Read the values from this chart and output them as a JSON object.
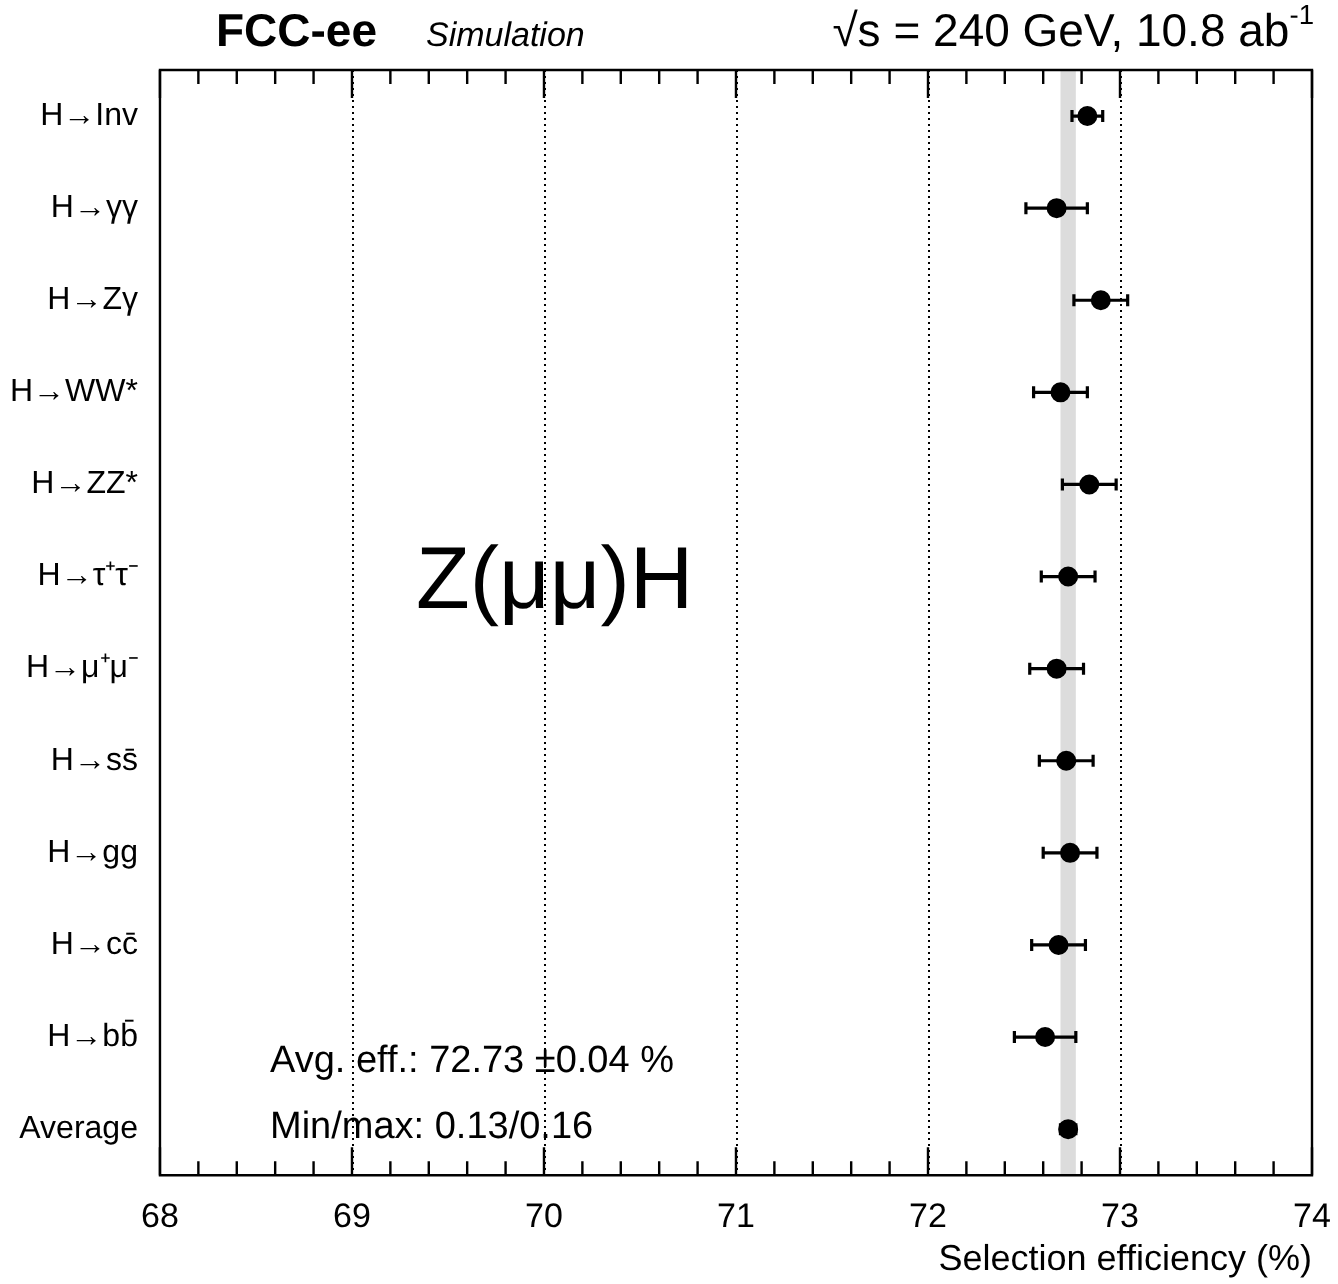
{
  "chart_data": {
    "type": "scatter",
    "title": "FCC-ee",
    "subtitle": "Simulation",
    "categories": [
      "H→Inv",
      "H→γγ",
      "H→Zγ",
      "H→WW*",
      "H→ZZ*",
      "H→τ⁺τ⁻",
      "H→μ⁺μ⁻",
      "H→ss̄",
      "H→gg",
      "H→cc̄",
      "H→bb̄",
      "Average"
    ],
    "values": [
      72.83,
      72.67,
      72.9,
      72.69,
      72.84,
      72.73,
      72.67,
      72.72,
      72.74,
      72.68,
      72.61,
      72.73
    ],
    "errors": [
      0.08,
      0.16,
      0.14,
      0.14,
      0.14,
      0.14,
      0.14,
      0.14,
      0.14,
      0.14,
      0.16,
      0.04
    ],
    "color": "#000000",
    "marker": "circle",
    "orientation": "horizontal",
    "xlabel": "Selection efficiency (%)",
    "xlim": [
      68,
      74
    ],
    "xticks": [
      68,
      {
        "value": 68.2,
        "label": null
      },
      {
        "value": 68.4,
        "label": null
      },
      {
        "value": 68.6,
        "label": null
      },
      {
        "value": 68.8,
        "label": null
      },
      69,
      {
        "value": 69.2,
        "label": null
      },
      {
        "value": 69.4,
        "label": null
      },
      {
        "value": 69.6,
        "label": null
      },
      {
        "value": 69.8,
        "label": null
      },
      70,
      {
        "value": 70.2,
        "label": null
      },
      {
        "value": 70.4,
        "label": null
      },
      {
        "value": 70.6,
        "label": null
      },
      {
        "value": 70.8,
        "label": null
      },
      71,
      {
        "value": 71.2,
        "label": null
      },
      {
        "value": 71.4,
        "label": null
      },
      {
        "value": 71.6,
        "label": null
      },
      {
        "value": 71.8,
        "label": null
      },
      72,
      {
        "value": 72.2,
        "label": null
      },
      {
        "value": 72.4,
        "label": null
      },
      {
        "value": 72.6,
        "label": null
      },
      {
        "value": 72.8,
        "label": null
      },
      73,
      {
        "value": 73.2,
        "label": null
      },
      {
        "value": 73.4,
        "label": null
      },
      {
        "value": 73.6,
        "label": null
      },
      {
        "value": 73.8,
        "label": null
      },
      74
    ],
    "grid": "x",
    "line_style": "dotted",
    "bands": [
      {
        "axis": "x",
        "from": 72.69,
        "to": 72.77,
        "color": "#dcdcdc"
      }
    ],
    "annotations": [
      "√s = 240 GeV, 10.8 ab$^{-1}$",
      "Z(μμ)H",
      "Avg. eff.: 72.73 ±0.04 %",
      "Min/max: 0.13/0.16"
    ]
  }
}
